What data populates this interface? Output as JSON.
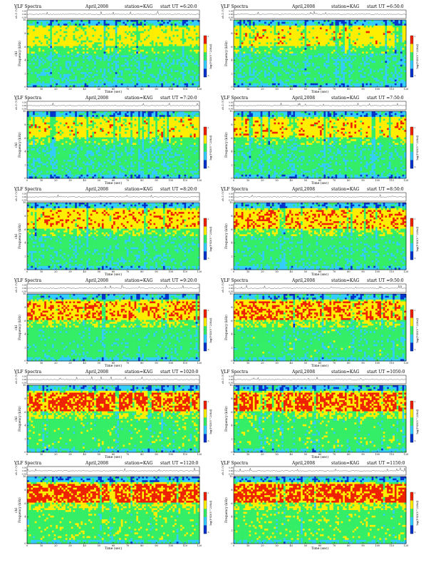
{
  "chart_data": [
    {
      "type": "heatmap",
      "title": "VLF Spectra",
      "date": "April,2008",
      "station": "station=KAG",
      "ut": "start UT =6:20:0",
      "ch_label": "ch.1 (V)",
      "ch_ticks": [
        "0.30",
        "0.00",
        "-0.30"
      ],
      "ylabel": "Frequency (kHz)",
      "ylabel_prefix": "ch1",
      "xlabel": "Time (sec)",
      "xlim": [
        0,
        120
      ],
      "xticks": [
        "0",
        "10",
        "20",
        "30",
        "40",
        "50",
        "60",
        "70",
        "80",
        "90",
        "100",
        "110",
        "120"
      ],
      "ylim": [
        0,
        10
      ],
      "yticks": [
        "0",
        "2",
        "4",
        "6",
        "8",
        "10"
      ],
      "colorbar_label": "log(PSD(V^2/Hz))",
      "colorbar_ticks": [
        "-1",
        "-5"
      ],
      "intensity": 0.35
    },
    {
      "type": "heatmap",
      "title": "VLF Spectra",
      "date": "April,2008",
      "station": "station=KAG",
      "ut": "start UT =6:50:0",
      "ch_label": "ch.1 (V)",
      "ch_ticks": [
        "0.30",
        "0.00",
        "-0.30"
      ],
      "ylabel": "Frequency (kHz)",
      "ylabel_prefix": "",
      "xlabel": "Time (sec)",
      "xlim": [
        0,
        120
      ],
      "xticks": [
        "0",
        "10",
        "20",
        "30",
        "40",
        "50",
        "60",
        "70",
        "80",
        "90",
        "100",
        "110",
        "120"
      ],
      "ylim": [
        0,
        10
      ],
      "yticks": [
        "0",
        "2",
        "4",
        "6",
        "8",
        "10"
      ],
      "colorbar_label": "log(PSD(V^2/Hz))",
      "colorbar_ticks": [
        "-1",
        "-5"
      ],
      "intensity": 0.4
    },
    {
      "type": "heatmap",
      "title": "VLF Spectra",
      "date": "April,2008",
      "station": "station=KAG",
      "ut": "start UT =7:20:0",
      "ch_label": "ch.1 (V)",
      "ch_ticks": [
        "0.30",
        "0.00",
        "-0.30"
      ],
      "ylabel": "Frequency (kHz)",
      "ylabel_prefix": "ch1",
      "xlabel": "Time (sec)",
      "xlim": [
        0,
        120
      ],
      "xticks": [
        "0",
        "10",
        "20",
        "30",
        "40",
        "50",
        "60",
        "70",
        "80",
        "90",
        "100",
        "110",
        "120"
      ],
      "ylim": [
        0,
        10
      ],
      "yticks": [
        "0",
        "2",
        "4",
        "6",
        "8",
        "10"
      ],
      "colorbar_label": "log(PSD(V^2/Hz))",
      "colorbar_ticks": [
        "-1",
        "-5"
      ],
      "intensity": 0.4
    },
    {
      "type": "heatmap",
      "title": "VLF Spectra",
      "date": "April,2008",
      "station": "station=KAG",
      "ut": "start UT =7:50:0",
      "ch_label": "ch.1 (V)",
      "ch_ticks": [
        "0.30",
        "0.00",
        "-0.30"
      ],
      "ylabel": "Frequency (kHz)",
      "ylabel_prefix": "",
      "xlabel": "Time (sec)",
      "xlim": [
        0,
        120
      ],
      "xticks": [
        "0",
        "10",
        "20",
        "30",
        "40",
        "50",
        "60",
        "70",
        "80",
        "90",
        "100",
        "110",
        "120"
      ],
      "ylim": [
        0,
        10
      ],
      "yticks": [
        "0",
        "2",
        "4",
        "6",
        "8",
        "10"
      ],
      "colorbar_label": "log(PSD(V^2/Hz))",
      "colorbar_ticks": [
        "-1",
        "-5"
      ],
      "intensity": 0.45
    },
    {
      "type": "heatmap",
      "title": "VLF Spectra",
      "date": "April,2008",
      "station": "station=KAG",
      "ut": "start UT =8:20:0",
      "ch_label": "ch.1 (V)",
      "ch_ticks": [
        "0.30",
        "0.00",
        "-0.30"
      ],
      "ylabel": "Frequency (kHz)",
      "ylabel_prefix": "ch1",
      "xlabel": "Time (sec)",
      "xlim": [
        0,
        120
      ],
      "xticks": [
        "0",
        "10",
        "20",
        "30",
        "40",
        "50",
        "60",
        "70",
        "80",
        "90",
        "100",
        "110",
        "120"
      ],
      "ylim": [
        0,
        10
      ],
      "yticks": [
        "0",
        "2",
        "4",
        "6",
        "8",
        "10"
      ],
      "colorbar_label": "log(PSD(V^2/Hz))",
      "colorbar_ticks": [
        "-1",
        "-5"
      ],
      "intensity": 0.5
    },
    {
      "type": "heatmap",
      "title": "VLF Spectra",
      "date": "April,2008",
      "station": "station=KAG",
      "ut": "start UT =8:50:0",
      "ch_label": "ch.1 (V)",
      "ch_ticks": [
        "0.30",
        "0.00",
        "-0.30"
      ],
      "ylabel": "Frequency (kHz)",
      "ylabel_prefix": "",
      "xlabel": "Time (sec)",
      "xlim": [
        0,
        120
      ],
      "xticks": [
        "0",
        "10",
        "20",
        "30",
        "40",
        "50",
        "60",
        "70",
        "80",
        "90",
        "100",
        "110",
        "120"
      ],
      "ylim": [
        0,
        10
      ],
      "yticks": [
        "0",
        "2",
        "4",
        "6",
        "8",
        "10"
      ],
      "colorbar_label": "log(PSD(V^2/Hz))",
      "colorbar_ticks": [
        "-1",
        "-5"
      ],
      "intensity": 0.55
    },
    {
      "type": "heatmap",
      "title": "VLF Spectra",
      "date": "April,2008",
      "station": "station=KAG",
      "ut": "start UT =9:20:0",
      "ch_label": "ch.1 (V)",
      "ch_ticks": [
        "0.30",
        "0.00",
        "-0.30"
      ],
      "ylabel": "Frequency (kHz)",
      "ylabel_prefix": "ch1",
      "xlabel": "Time (sec)",
      "xlim": [
        0,
        120
      ],
      "xticks": [
        "0",
        "10",
        "20",
        "30",
        "40",
        "50",
        "60",
        "70",
        "80",
        "90",
        "100",
        "110",
        "120"
      ],
      "ylim": [
        0,
        10
      ],
      "yticks": [
        "0",
        "2",
        "4",
        "6",
        "8",
        "10"
      ],
      "colorbar_label": "log(PSD(V^2/Hz))",
      "colorbar_ticks": [
        "-1",
        "-5"
      ],
      "intensity": 0.6
    },
    {
      "type": "heatmap",
      "title": "VLF Spectra",
      "date": "April,2008",
      "station": "station=KAG",
      "ut": "start UT =9:50:0",
      "ch_label": "ch.1 (V)",
      "ch_ticks": [
        "0.30",
        "0.00",
        "-0.30"
      ],
      "ylabel": "Frequency (kHz)",
      "ylabel_prefix": "",
      "xlabel": "Time (sec)",
      "xlim": [
        0,
        120
      ],
      "xticks": [
        "0",
        "10",
        "20",
        "30",
        "40",
        "50",
        "60",
        "70",
        "80",
        "90",
        "100",
        "110",
        "120"
      ],
      "ylim": [
        0,
        10
      ],
      "yticks": [
        "0",
        "2",
        "4",
        "6",
        "8",
        "10"
      ],
      "colorbar_label": "log(PSD(V^2/Hz))",
      "colorbar_ticks": [
        "-1",
        "-5"
      ],
      "intensity": 0.65
    },
    {
      "type": "heatmap",
      "title": "VLF Spectra",
      "date": "April,2008",
      "station": "station=KAG",
      "ut": "start UT =1020:0",
      "ch_label": "ch.1 (V)",
      "ch_ticks": [
        "0.30",
        "0.00",
        "-0.30"
      ],
      "ylabel": "Frequency (kHz)",
      "ylabel_prefix": "ch1",
      "xlabel": "Time (sec)",
      "xlim": [
        0,
        120
      ],
      "xticks": [
        "0",
        "10",
        "20",
        "30",
        "40",
        "50",
        "60",
        "70",
        "80",
        "90",
        "100",
        "110",
        "120"
      ],
      "ylim": [
        0,
        10
      ],
      "yticks": [
        "0",
        "2",
        "4",
        "6",
        "8",
        "10"
      ],
      "colorbar_label": "log(PSD(V^2/Hz))",
      "colorbar_ticks": [
        "-1",
        "-5"
      ],
      "intensity": 0.75
    },
    {
      "type": "heatmap",
      "title": "VLF Spectra",
      "date": "April,2008",
      "station": "station=KAG",
      "ut": "start UT =1050:0",
      "ch_label": "ch.1 (V)",
      "ch_ticks": [
        "0.30",
        "0.00",
        "-0.30"
      ],
      "ylabel": "Frequency (kHz)",
      "ylabel_prefix": "",
      "xlabel": "Time (sec)",
      "xlim": [
        0,
        120
      ],
      "xticks": [
        "0",
        "10",
        "20",
        "30",
        "40",
        "50",
        "60",
        "70",
        "80",
        "90",
        "100",
        "110",
        "120"
      ],
      "ylim": [
        0,
        10
      ],
      "yticks": [
        "0",
        "2",
        "4",
        "6",
        "8",
        "10"
      ],
      "colorbar_label": "log(PSD(V^2/Hz))",
      "colorbar_ticks": [
        "-1",
        "-5"
      ],
      "intensity": 0.75
    },
    {
      "type": "heatmap",
      "title": "VLF Spectra",
      "date": "April,2008",
      "station": "station=KAG",
      "ut": "start UT =1120:0",
      "ch_label": "ch.1 (V)",
      "ch_ticks": [
        "0.30",
        "0.00",
        "-0.30"
      ],
      "ylabel": "Frequency (kHz)",
      "ylabel_prefix": "ch1",
      "xlabel": "Time (sec)",
      "xlim": [
        0,
        120
      ],
      "xticks": [
        "0",
        "10",
        "20",
        "30",
        "40",
        "50",
        "60",
        "70",
        "80",
        "90",
        "100",
        "110",
        "120"
      ],
      "ylim": [
        0,
        10
      ],
      "yticks": [
        "0",
        "2",
        "4",
        "6",
        "8",
        "10"
      ],
      "colorbar_label": "log(PSD(V^2/Hz))",
      "colorbar_ticks": [
        "-1",
        "-5"
      ],
      "intensity": 0.8
    },
    {
      "type": "heatmap",
      "title": "VLF Spectra",
      "date": "April,2008",
      "station": "station=KAG",
      "ut": "start UT =1150:0",
      "ch_label": "ch.1 (V)",
      "ch_ticks": [
        "0.30",
        "0.00",
        "-0.30"
      ],
      "ylabel": "Frequency (kHz)",
      "ylabel_prefix": "",
      "xlabel": "Time (sec)",
      "xlim": [
        0,
        120
      ],
      "xticks": [
        "0",
        "10",
        "20",
        "30",
        "40",
        "50",
        "60",
        "70",
        "80",
        "90",
        "100",
        "110",
        "120"
      ],
      "ylim": [
        0,
        10
      ],
      "yticks": [
        "0",
        "2",
        "4",
        "6",
        "8",
        "10"
      ],
      "colorbar_label": "log(PSD(V^2/Hz))",
      "colorbar_ticks": [
        "-1",
        "-5"
      ],
      "intensity": 0.8
    }
  ],
  "colors": {
    "low": "#0033cc",
    "mid_low": "#33ccff",
    "mid": "#33ee66",
    "mid_high": "#ffee00",
    "high": "#ee2200",
    "waveform": "#333333"
  }
}
